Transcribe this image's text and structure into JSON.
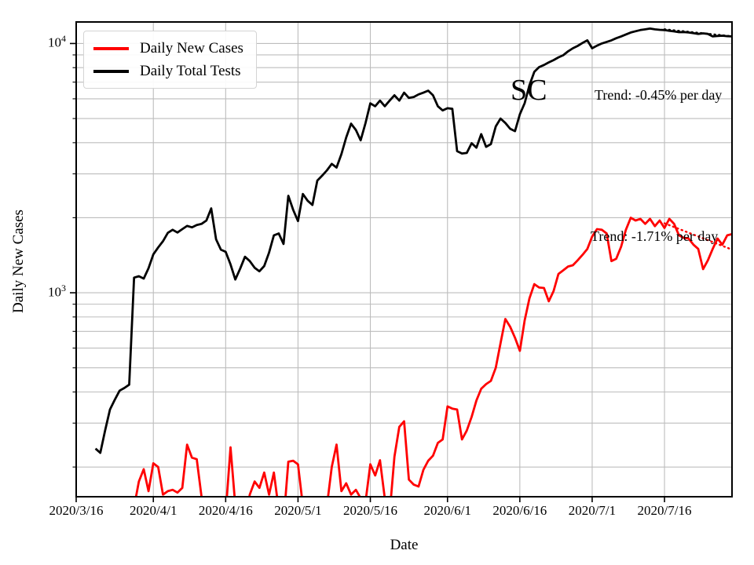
{
  "annotations": {
    "state": "SC",
    "trend_tests": "Trend: -0.45% per day",
    "trend_cases": "Trend: -1.71% per day"
  },
  "legend": {
    "items": [
      {
        "label": "Daily New Cases",
        "color": "#ff0000"
      },
      {
        "label": "Daily Total Tests",
        "color": "#000000"
      }
    ]
  },
  "colors": {
    "cases": "#ff0000",
    "tests": "#000000",
    "grid": "#bdbdbd",
    "axis": "#000000"
  },
  "chart_data": {
    "type": "line",
    "title": "",
    "xlabel": "Date",
    "ylabel": "Daily New Cases",
    "yscale": "log",
    "ylim": [
      152,
      12200
    ],
    "grid": true,
    "legend_position": "upper left",
    "x_tick_labels": [
      "2020/3/16",
      "2020/4/1",
      "2020/4/16",
      "2020/5/1",
      "2020/5/16",
      "2020/6/1",
      "2020/6/16",
      "2020/7/1",
      "2020/7/16"
    ],
    "y_ticks": [
      {
        "value": 1000,
        "base": "10",
        "exp": "3"
      },
      {
        "value": 10000,
        "base": "10",
        "exp": "4"
      }
    ],
    "series": [
      {
        "name": "Daily New Cases",
        "color": "#ff0000",
        "frequency": "daily",
        "start_date": "2020/3/27",
        "values": [
          100,
          138,
          175,
          196,
          160,
          207,
          200,
          155,
          160,
          162,
          158,
          165,
          246,
          218,
          215,
          152,
          110,
          105,
          115,
          120,
          130,
          240,
          140,
          105,
          120,
          155,
          175,
          165,
          190,
          155,
          190,
          135,
          120,
          210,
          212,
          205,
          140,
          120,
          125,
          130,
          135,
          140,
          200,
          246,
          160,
          172,
          155,
          162,
          150,
          145,
          205,
          185,
          213,
          150,
          130,
          220,
          290,
          305,
          178,
          170,
          167,
          195,
          212,
          222,
          250,
          258,
          350,
          343,
          340,
          258,
          280,
          318,
          370,
          412,
          430,
          443,
          500,
          628,
          785,
          730,
          660,
          585,
          775,
          950,
          1083,
          1050,
          1045,
          925,
          1015,
          1190,
          1230,
          1275,
          1290,
          1350,
          1420,
          1500,
          1680,
          1800,
          1790,
          1730,
          1340,
          1370,
          1530,
          1790,
          2000,
          1950,
          1980,
          1890,
          1980,
          1850,
          1950,
          1820,
          1980,
          1890,
          1700,
          1660,
          1650,
          1560,
          1500,
          1245,
          1350,
          1500,
          1650,
          1560,
          1700,
          1720
        ]
      },
      {
        "name": "Daily Total Tests",
        "color": "#000000",
        "frequency": "daily",
        "start_date": "2020/3/20",
        "values": [
          237,
          228,
          280,
          340,
          372,
          405,
          415,
          428,
          1150,
          1165,
          1140,
          1255,
          1425,
          1520,
          1610,
          1740,
          1790,
          1745,
          1800,
          1855,
          1830,
          1870,
          1890,
          1950,
          2180,
          1640,
          1490,
          1460,
          1300,
          1130,
          1250,
          1395,
          1340,
          1260,
          1220,
          1280,
          1450,
          1700,
          1730,
          1570,
          2450,
          2150,
          1940,
          2490,
          2340,
          2250,
          2820,
          2950,
          3100,
          3290,
          3180,
          3600,
          4200,
          4770,
          4500,
          4090,
          4800,
          5755,
          5600,
          5900,
          5600,
          5900,
          6200,
          5900,
          6350,
          6050,
          6100,
          6250,
          6350,
          6470,
          6200,
          5600,
          5390,
          5500,
          5470,
          3700,
          3620,
          3640,
          3980,
          3820,
          4330,
          3850,
          3950,
          4650,
          5000,
          4800,
          4550,
          4450,
          5200,
          5760,
          6800,
          7700,
          8040,
          8200,
          8400,
          8580,
          8800,
          8970,
          9300,
          9570,
          9780,
          10050,
          10300,
          9570,
          9800,
          10000,
          10150,
          10300,
          10500,
          10680,
          10870,
          11070,
          11200,
          11320,
          11400,
          11480,
          11400,
          11350,
          11320,
          11250,
          11180,
          11100,
          11120,
          11070,
          11000,
          10930,
          10980,
          10930,
          10680,
          10720,
          10750,
          10700,
          10680
        ]
      }
    ],
    "trend_lines": [
      {
        "name": "tests-trend",
        "color": "#000000",
        "start_date": "2020/7/16",
        "end_date": "2020/7/30",
        "start_value": 11400,
        "end_value": 10690,
        "rate_label": "Trend: -0.45% per day"
      },
      {
        "name": "cases-trend",
        "color": "#ff0000",
        "start_date": "2020/7/16",
        "end_date": "2020/7/30",
        "start_value": 1900,
        "end_value": 1490,
        "rate_label": "Trend: -1.71% per day"
      }
    ]
  }
}
